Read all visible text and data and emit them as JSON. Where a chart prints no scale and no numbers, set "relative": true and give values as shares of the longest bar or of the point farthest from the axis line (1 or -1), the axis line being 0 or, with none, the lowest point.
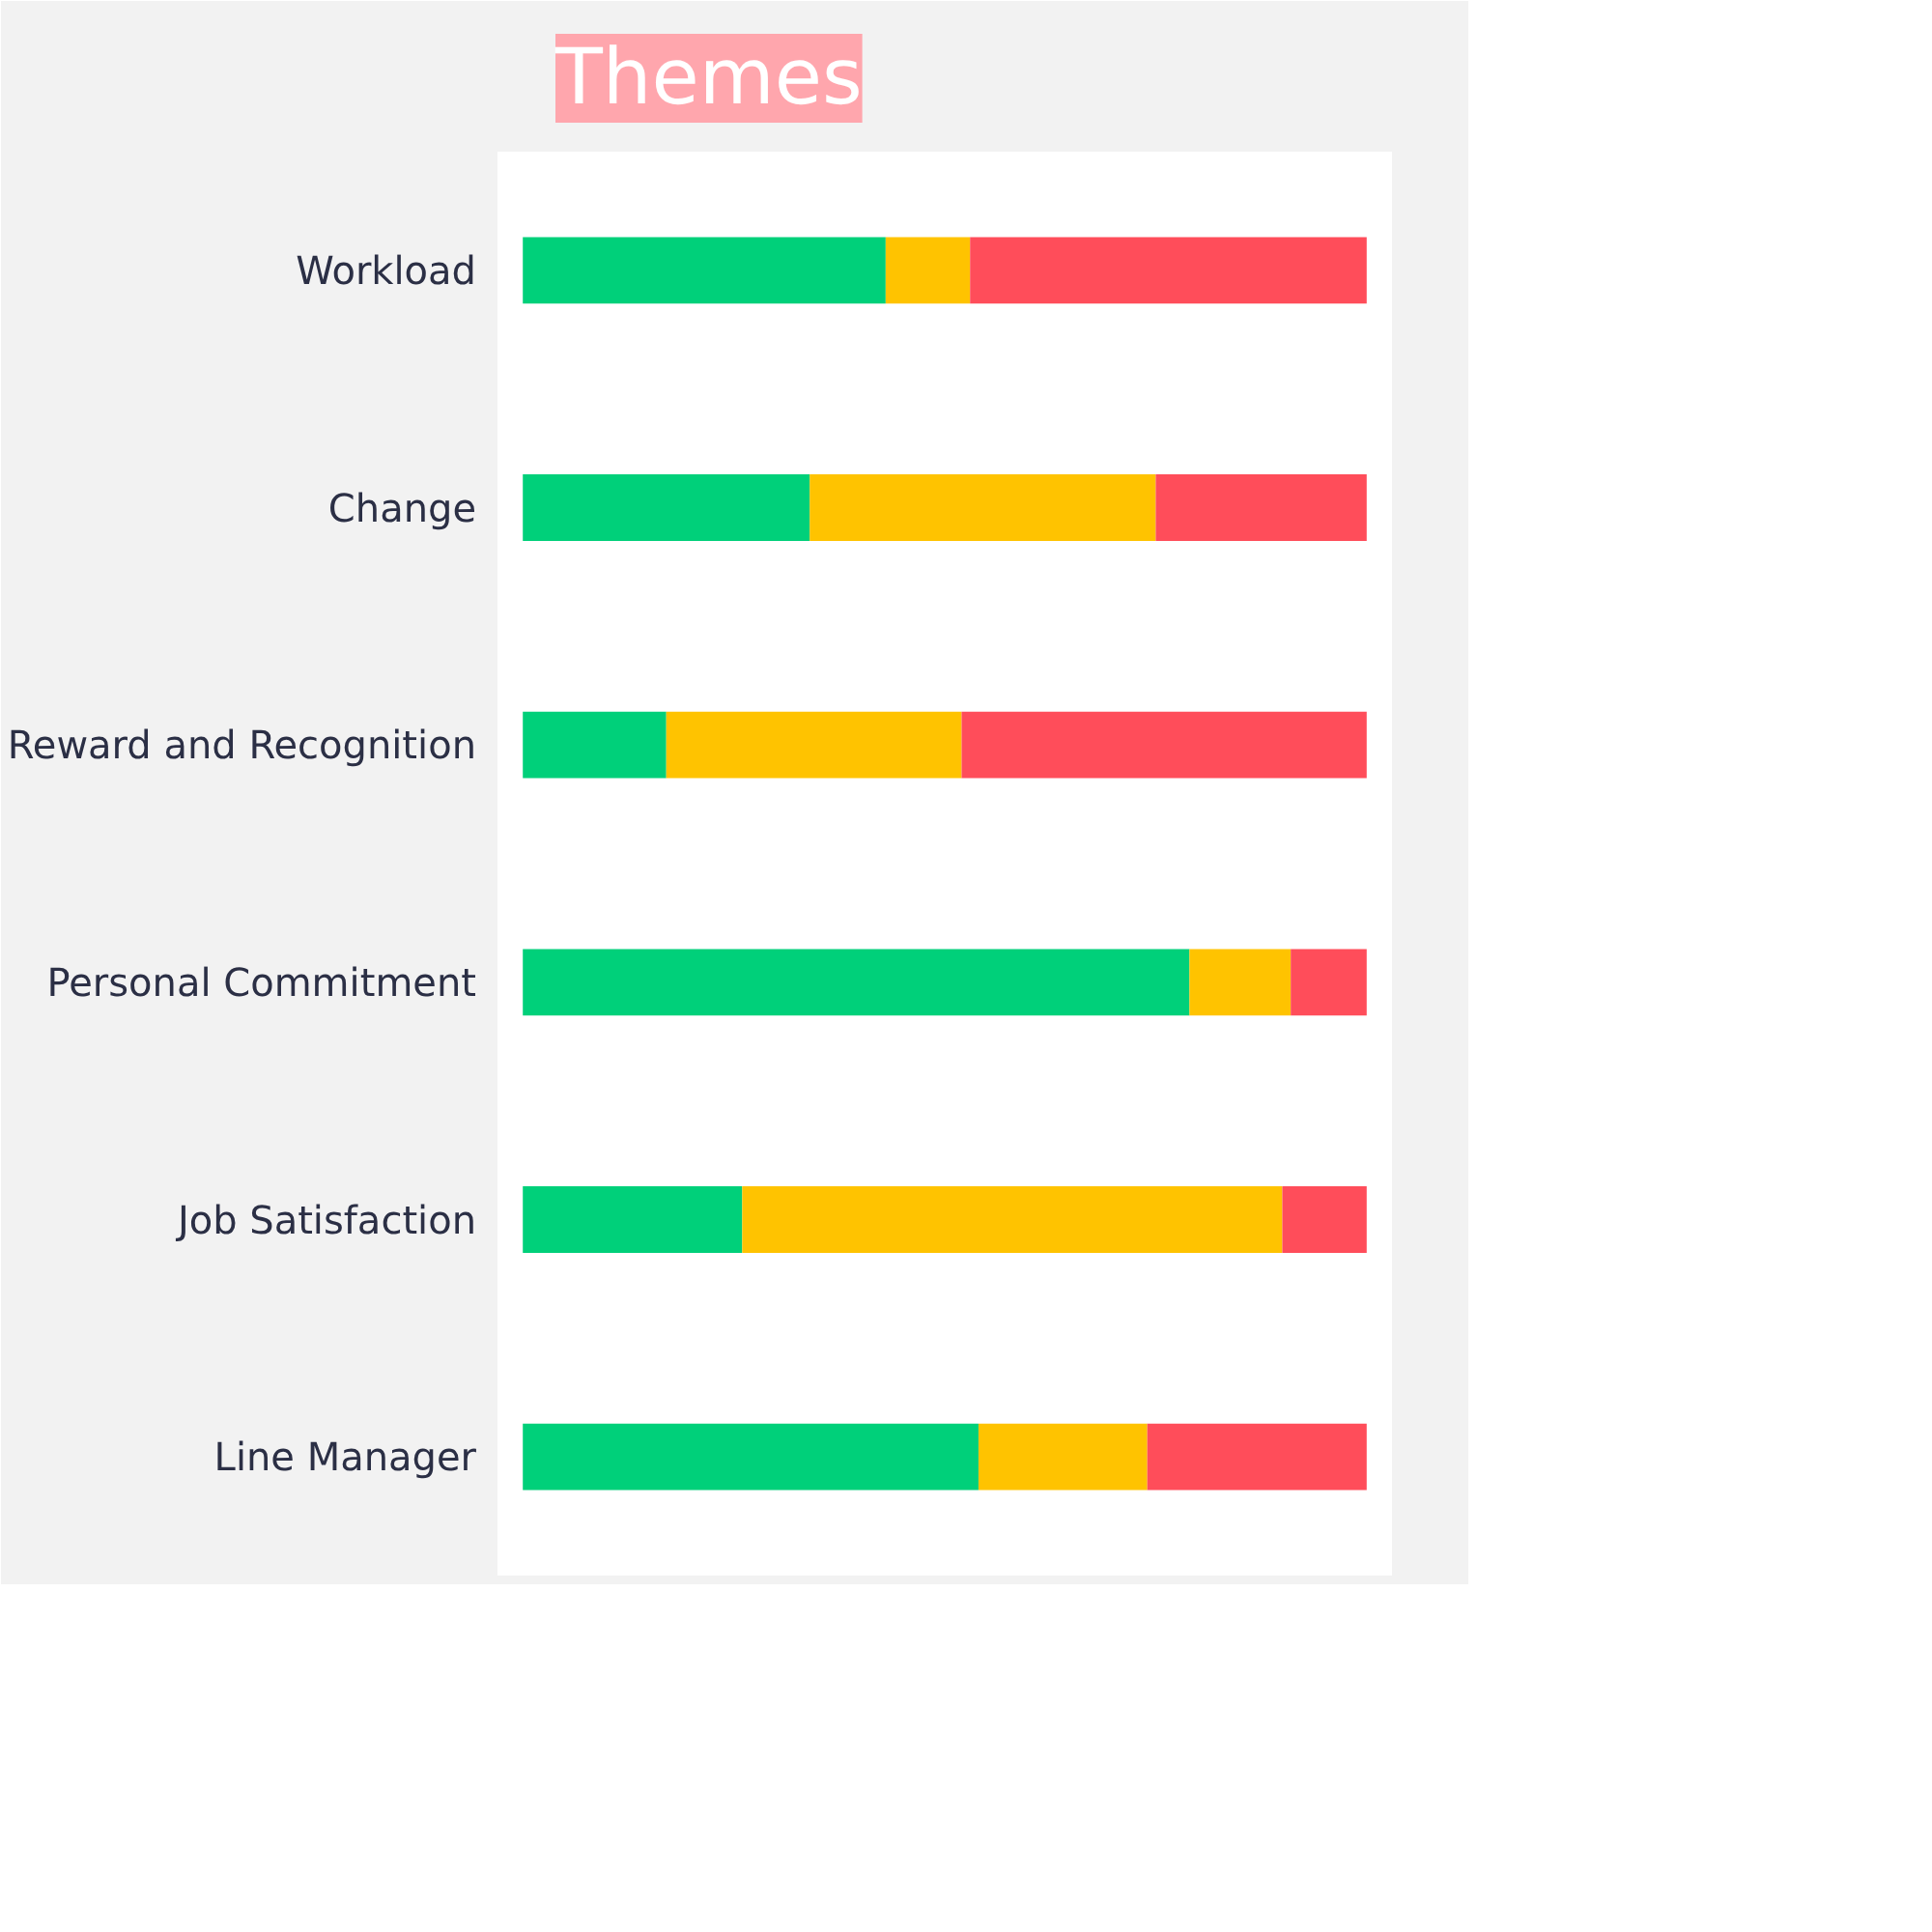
{
  "chart_data": {
    "type": "bar",
    "title": "Themes",
    "orientation": "horizontal",
    "stacked": true,
    "relative": true,
    "categories": [
      "Workload",
      "Change",
      "Reward and Recognition",
      "Personal Commitment",
      "Job Satisfaction",
      "Line Manager"
    ],
    "series": [
      {
        "color": "#00d07a",
        "values": [
          0.43,
          0.34,
          0.17,
          0.79,
          0.26,
          0.54
        ]
      },
      {
        "color": "#ffc300",
        "values": [
          0.1,
          0.41,
          0.35,
          0.12,
          0.64,
          0.2
        ]
      },
      {
        "color": "#ff4d5a",
        "values": [
          0.47,
          0.25,
          0.48,
          0.09,
          0.1,
          0.26
        ]
      }
    ],
    "grid": false
  }
}
